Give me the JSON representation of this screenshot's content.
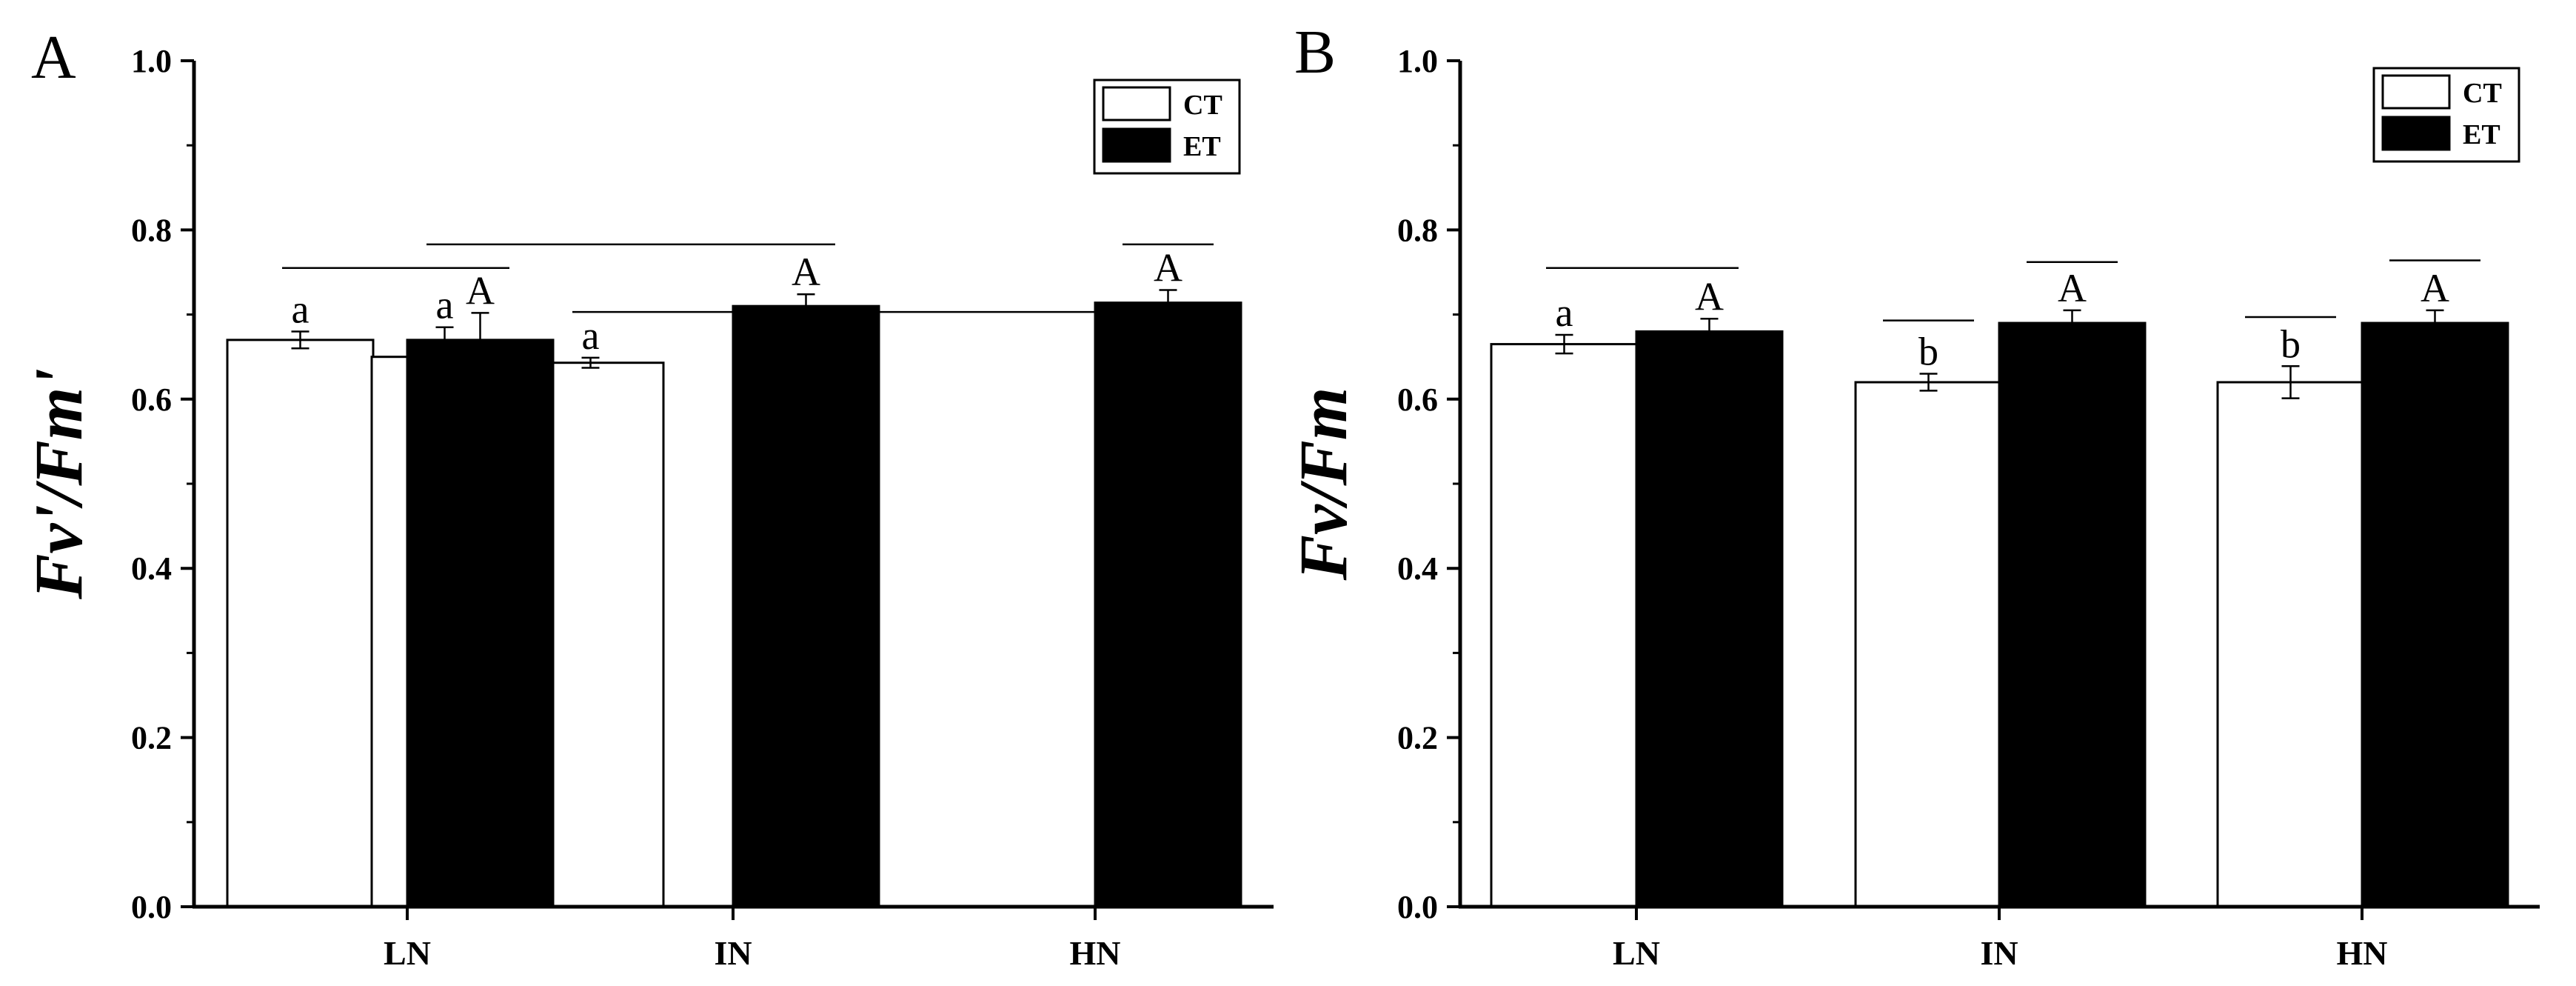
{
  "chart_data": [
    {
      "panel_label": "A",
      "type": "bar",
      "ylabel": "Fv'/Fm'",
      "xlabel": "",
      "ylim": [
        0,
        1.0
      ],
      "yticks": [
        "0.0",
        "0.2",
        "0.4",
        "0.6",
        "0.8",
        "1.0"
      ],
      "categories": [
        "LN",
        "IN",
        "HN"
      ],
      "legend": {
        "position": "top-right",
        "entries": [
          "CT",
          "ET"
        ]
      },
      "series": [
        {
          "name": "CT",
          "color": "#ffffff",
          "values": [
            0.67,
            0.65,
            0.643
          ],
          "errors": [
            0.01,
            0.035,
            0.006
          ],
          "letters": [
            "a",
            "a",
            "a"
          ]
        },
        {
          "name": "ET",
          "color": "#000000",
          "values": [
            0.67,
            0.71,
            0.714
          ],
          "errors": [
            0.032,
            0.014,
            0.015
          ],
          "letters": [
            "A",
            "A",
            "A"
          ]
        }
      ],
      "brackets": [
        {
          "category": 0,
          "y": 0.755
        },
        {
          "category": 1,
          "y": 0.783
        },
        {
          "category": 2,
          "y": 0.703
        },
        {
          "category": 2,
          "y": 0.783,
          "series": 1
        }
      ]
    },
    {
      "panel_label": "B",
      "type": "bar",
      "ylabel": "Fv/Fm",
      "xlabel": "",
      "ylim": [
        0,
        1.0
      ],
      "yticks": [
        "0.0",
        "0.2",
        "0.4",
        "0.6",
        "0.8",
        "1.0"
      ],
      "categories": [
        "LN",
        "IN",
        "HN"
      ],
      "legend": {
        "position": "top-right",
        "entries": [
          "CT",
          "ET"
        ]
      },
      "series": [
        {
          "name": "CT",
          "color": "#ffffff",
          "values": [
            0.665,
            0.62,
            0.62
          ],
          "errors": [
            0.011,
            0.01,
            0.019
          ],
          "letters": [
            "a",
            "b",
            "b"
          ]
        },
        {
          "name": "ET",
          "color": "#000000",
          "values": [
            0.68,
            0.69,
            0.69
          ],
          "errors": [
            0.015,
            0.015,
            0.015
          ],
          "letters": [
            "A",
            "A",
            "A"
          ]
        }
      ],
      "brackets": [
        {
          "category": 0,
          "y": 0.755
        },
        {
          "category": 1,
          "y": 0.693,
          "series": 0
        },
        {
          "category": 1,
          "y": 0.762,
          "series": 1
        },
        {
          "category": 2,
          "y": 0.697,
          "series": 0
        },
        {
          "category": 2,
          "y": 0.764,
          "series": 1
        }
      ]
    }
  ]
}
